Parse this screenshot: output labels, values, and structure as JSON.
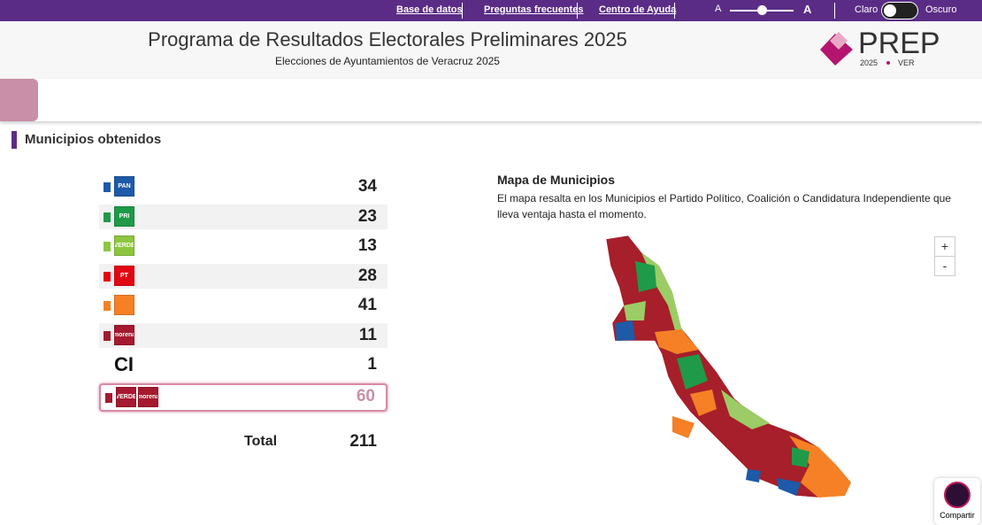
{
  "topbar": {
    "links": [
      "Base de datos",
      "Preguntas frecuentes",
      "Centro de Ayuda"
    ],
    "font_small": "A",
    "font_large": "A",
    "theme_light": "Claro",
    "theme_dark": "Oscuro"
  },
  "header": {
    "title": "Programa de Resultados Electorales Preliminares 2025",
    "subtitle": "Elecciones de Ayuntamientos de Veracruz 2025",
    "logo": {
      "name": "PREP",
      "year": "2025",
      "state": "VER"
    }
  },
  "section": {
    "title": "Municipios obtenidos"
  },
  "table": {
    "rows": [
      {
        "color": "#1e5aa8",
        "logos": [
          "PAN"
        ],
        "value": 34
      },
      {
        "color": "#1f9a48",
        "logos": [
          "PRI"
        ],
        "value": 23
      },
      {
        "color": "#8cc63f",
        "logos": [
          "VERDE"
        ],
        "value": 13
      },
      {
        "color": "#e30613",
        "logos": [
          "PT"
        ],
        "value": 28
      },
      {
        "color": "#f58025",
        "logos": [],
        "value": 41
      },
      {
        "color": "#a6192e",
        "logos": [
          "morena"
        ],
        "value": 11
      },
      {
        "label": "CI",
        "logos": [],
        "value": 1
      },
      {
        "color": "#a6192e",
        "logos": [
          "VERDE",
          "morena"
        ],
        "value": 60,
        "highlighted": true
      }
    ],
    "total_label": "Total",
    "total": 211
  },
  "map": {
    "title": "Mapa de Municipios",
    "description": "El mapa resalta en los Municipios el Partido Político, Coalición o Candidatura Independiente que lleva ventaja hasta el momento.",
    "zoom_in": "+",
    "zoom_out": "-"
  },
  "share": "Compartir"
}
